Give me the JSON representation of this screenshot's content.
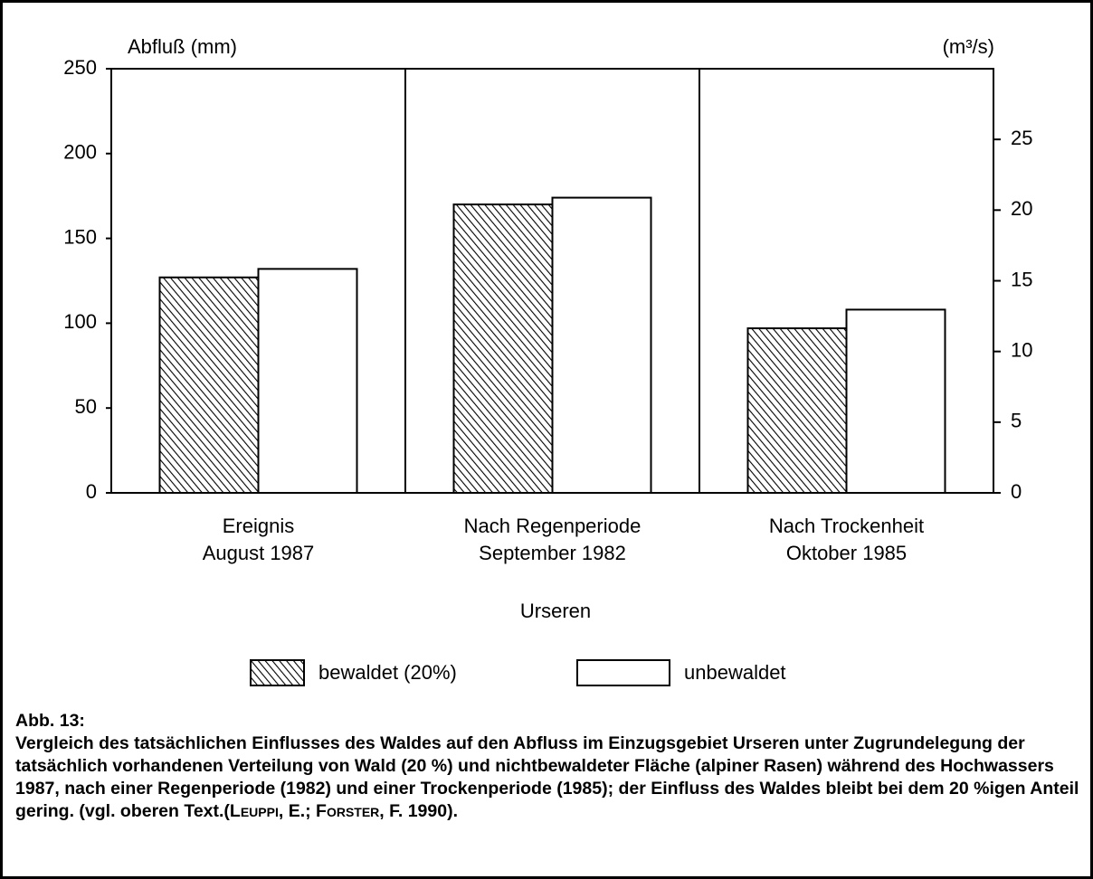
{
  "chart_data": {
    "type": "bar",
    "y_label": "Abfluß (mm)",
    "y2_label": "(m³/s)",
    "x_label": "Urseren",
    "categories": [
      [
        "Ereignis",
        "August 1987"
      ],
      [
        "Nach Regenperiode",
        "September 1982"
      ],
      [
        "Nach Trockenheit",
        "Oktober 1985"
      ]
    ],
    "series": [
      {
        "name": "bewaldet (20%)",
        "color": "#000000",
        "pattern": "hatch",
        "values": [
          127,
          170,
          97
        ]
      },
      {
        "name": "unbewaldet",
        "color": "#ffffff",
        "pattern": "none",
        "values": [
          132,
          174,
          108
        ]
      }
    ],
    "ylim": [
      0,
      250
    ],
    "yticks": [
      0,
      50,
      100,
      150,
      200,
      250
    ],
    "y2lim": [
      0,
      30
    ],
    "y2ticks": [
      0,
      5,
      10,
      15,
      20,
      25
    ]
  },
  "caption": {
    "label": "Abb. 13:",
    "parts": [
      "Vergleich des tatsächlichen Einflusses des Waldes auf den Abfluss im Einzugsgebiet Urseren unter Zugrundelegung der tatsächlich vorhandenen Verteilung von Wald (20 %) und nichtbewaldeter Fläche (alpiner Rasen) während des Hochwassers 1987, nach einer Regenperiode (1982) und einer Trockenperiode (1985); der Einfluss des Waldes bleibt bei dem 20 %igen Anteil gering. (vgl. oberen Text.(",
      "Leuppi",
      ", E.; ",
      "Forster",
      ", F. 1990)."
    ]
  }
}
